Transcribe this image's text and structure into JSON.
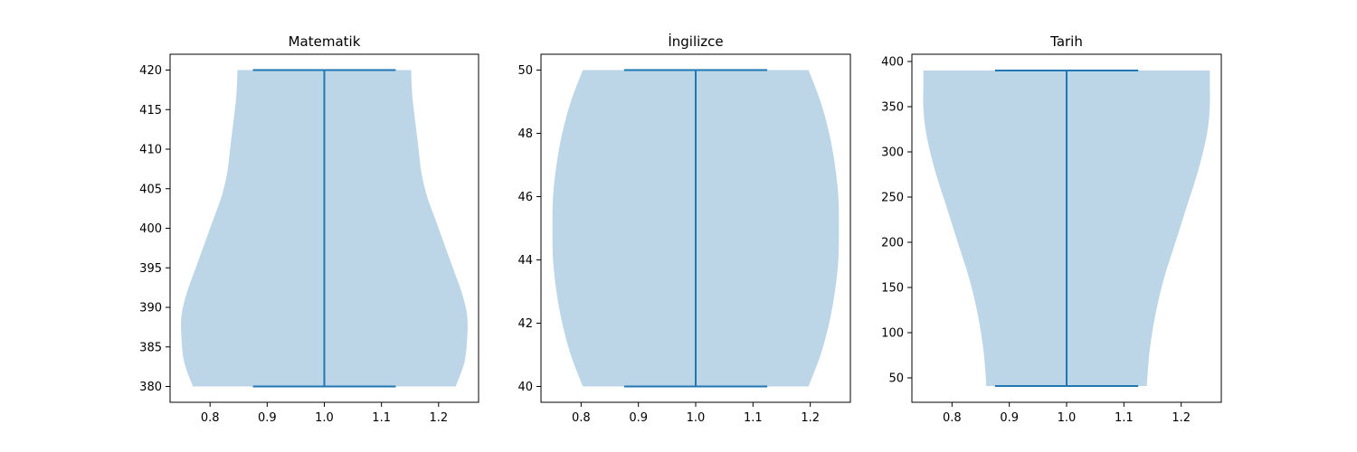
{
  "chart_data": [
    {
      "type": "violin",
      "title": "Matematik",
      "position": 1,
      "xlim": [
        0.73,
        1.27
      ],
      "ylim": [
        378,
        422
      ],
      "xticks": [
        0.8,
        0.9,
        1.0,
        1.1,
        1.2
      ],
      "xtick_labels": [
        "0.8",
        "0.9",
        "1.0",
        "1.1",
        "1.2"
      ],
      "yticks": [
        380,
        385,
        390,
        395,
        400,
        405,
        410,
        415,
        420
      ],
      "ytick_labels": [
        "380",
        "385",
        "390",
        "395",
        "400",
        "405",
        "410",
        "415",
        "420"
      ],
      "min": 380,
      "max": 420,
      "cap_half_width": 0.125,
      "profile": [
        {
          "y": 380,
          "w": 0.23
        },
        {
          "y": 383,
          "w": 0.245
        },
        {
          "y": 386,
          "w": 0.25
        },
        {
          "y": 389,
          "w": 0.25
        },
        {
          "y": 392,
          "w": 0.24
        },
        {
          "y": 395,
          "w": 0.225
        },
        {
          "y": 398,
          "w": 0.21
        },
        {
          "y": 401,
          "w": 0.195
        },
        {
          "y": 404,
          "w": 0.18
        },
        {
          "y": 407,
          "w": 0.17
        },
        {
          "y": 410,
          "w": 0.165
        },
        {
          "y": 413,
          "w": 0.16
        },
        {
          "y": 416,
          "w": 0.155
        },
        {
          "y": 418,
          "w": 0.153
        },
        {
          "y": 420,
          "w": 0.152
        }
      ]
    },
    {
      "type": "violin",
      "title": "İngilizce",
      "position": 1,
      "xlim": [
        0.73,
        1.27
      ],
      "ylim": [
        39.5,
        50.5
      ],
      "xticks": [
        0.8,
        0.9,
        1.0,
        1.1,
        1.2
      ],
      "xtick_labels": [
        "0.8",
        "0.9",
        "1.0",
        "1.1",
        "1.2"
      ],
      "yticks": [
        40,
        42,
        44,
        46,
        48,
        50
      ],
      "ytick_labels": [
        "40",
        "42",
        "44",
        "46",
        "48",
        "50"
      ],
      "min": 40,
      "max": 50,
      "cap_half_width": 0.125,
      "profile": [
        {
          "y": 40,
          "w": 0.197
        },
        {
          "y": 41,
          "w": 0.218
        },
        {
          "y": 42,
          "w": 0.233
        },
        {
          "y": 43,
          "w": 0.243
        },
        {
          "y": 44,
          "w": 0.249
        },
        {
          "y": 45,
          "w": 0.25
        },
        {
          "y": 46,
          "w": 0.249
        },
        {
          "y": 47,
          "w": 0.243
        },
        {
          "y": 48,
          "w": 0.233
        },
        {
          "y": 49,
          "w": 0.218
        },
        {
          "y": 50,
          "w": 0.197
        }
      ]
    },
    {
      "type": "violin",
      "title": "Tarih",
      "position": 1,
      "xlim": [
        0.73,
        1.27
      ],
      "ylim": [
        23,
        408
      ],
      "xticks": [
        0.8,
        0.9,
        1.0,
        1.1,
        1.2
      ],
      "xtick_labels": [
        "0.8",
        "0.9",
        "1.0",
        "1.1",
        "1.2"
      ],
      "yticks": [
        50,
        100,
        150,
        200,
        250,
        300,
        350,
        400
      ],
      "ytick_labels": [
        "50",
        "100",
        "150",
        "200",
        "250",
        "300",
        "350",
        "400"
      ],
      "min": 41,
      "max": 390,
      "cap_half_width": 0.125,
      "profile": [
        {
          "y": 41,
          "w": 0.14
        },
        {
          "y": 80,
          "w": 0.145
        },
        {
          "y": 120,
          "w": 0.155
        },
        {
          "y": 160,
          "w": 0.17
        },
        {
          "y": 200,
          "w": 0.19
        },
        {
          "y": 240,
          "w": 0.21
        },
        {
          "y": 280,
          "w": 0.23
        },
        {
          "y": 320,
          "w": 0.245
        },
        {
          "y": 350,
          "w": 0.25
        },
        {
          "y": 375,
          "w": 0.25
        },
        {
          "y": 390,
          "w": 0.25
        }
      ]
    }
  ],
  "colors": {
    "body": "#bcd6e8",
    "line": "#1f77b4",
    "axis": "#000000"
  }
}
